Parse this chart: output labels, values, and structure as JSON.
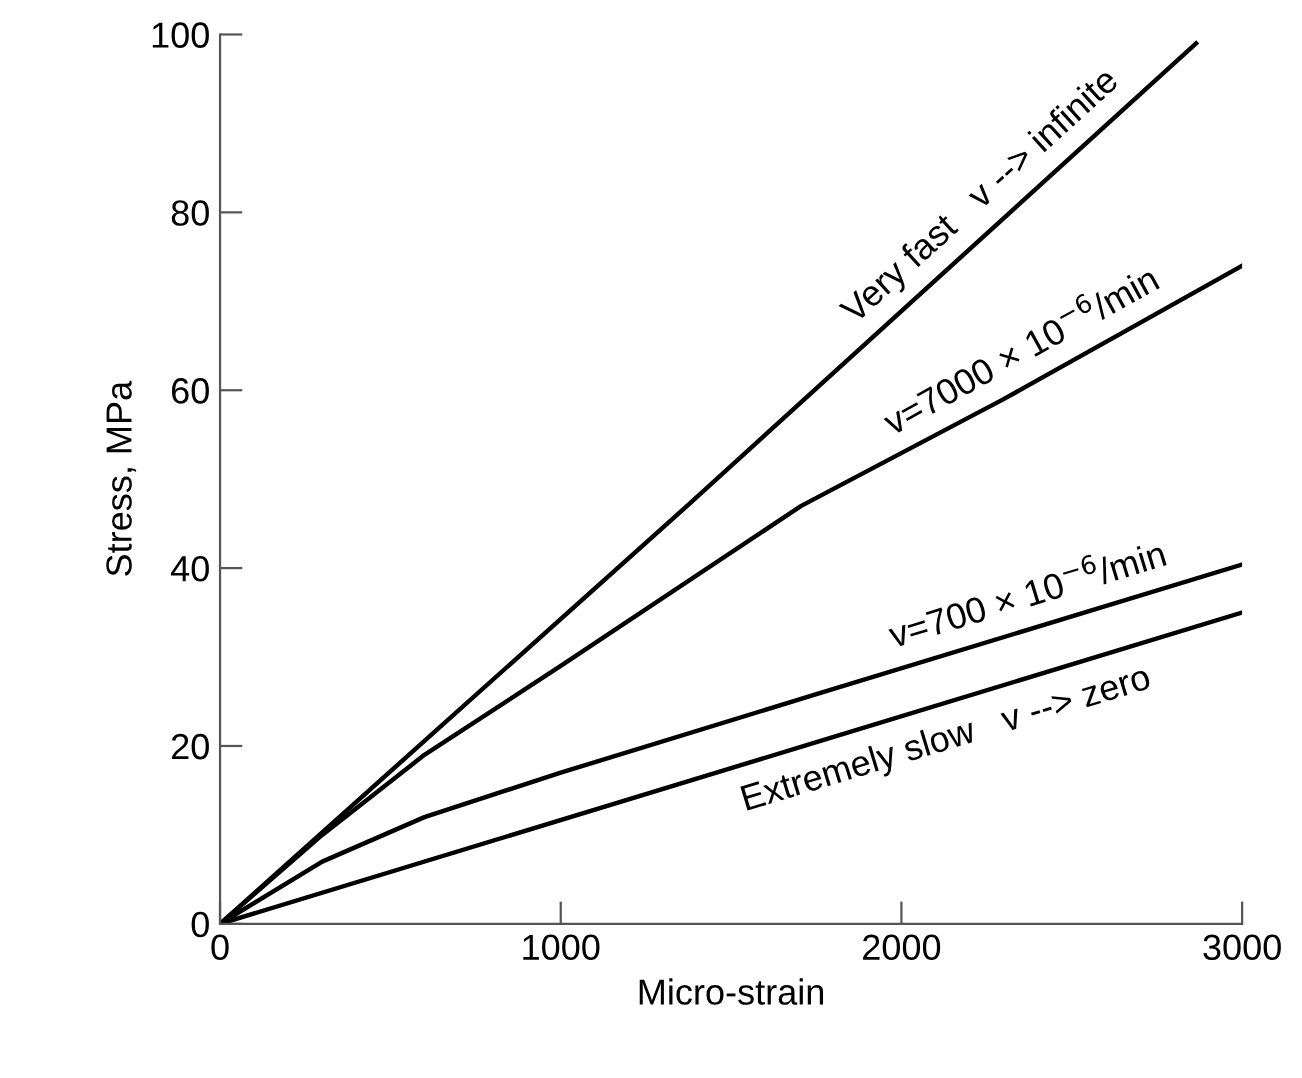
{
  "chart_data": {
    "type": "line",
    "xlabel": "Micro-strain",
    "ylabel": "Stress, MPa",
    "xlim": [
      0,
      3000
    ],
    "ylim": [
      0,
      100
    ],
    "xticks": [
      0,
      1000,
      2000,
      3000
    ],
    "yticks": [
      0,
      20,
      40,
      60,
      80,
      100
    ],
    "grid": false,
    "legend": false,
    "marker": "none",
    "line_style": "solid",
    "series": [
      {
        "color": "#000000",
        "x": [
          0,
          1371,
          2865
        ],
        "values": [
          0,
          47,
          99
        ]
      },
      {
        "color": "#000000",
        "x": [
          0,
          300,
          600,
          1000,
          1706,
          2300,
          3000
        ],
        "values": [
          0,
          10,
          19,
          29,
          47,
          59,
          74
        ]
      },
      {
        "color": "#000000",
        "x": [
          0,
          300,
          600,
          1000,
          1765,
          3000
        ],
        "values": [
          0,
          7,
          12,
          17,
          26,
          40.4
        ]
      },
      {
        "color": "#000000",
        "x": [
          0,
          1765,
          3000
        ],
        "values": [
          0,
          20.6,
          35
        ]
      }
    ],
    "annotations": [
      "Very fast   v --> infinite",
      "v=7000 × 10$^{−6}$/min",
      "v=700 × 10$^{−6}$/min",
      "Extremely slow   v --> zero"
    ]
  }
}
